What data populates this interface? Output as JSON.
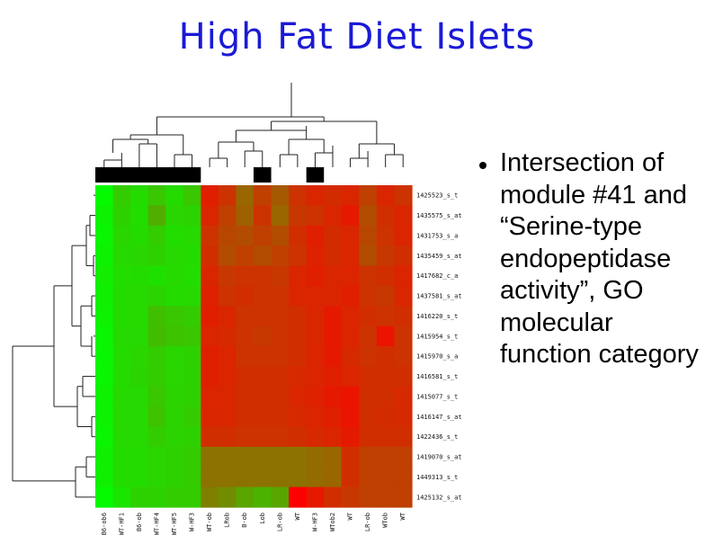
{
  "slide": {
    "title": "High Fat Diet Islets",
    "bullet_text": "Intersection of module #41 and “Serine-type endopeptidase activity”, GO molecular function category"
  },
  "chart_data": {
    "type": "heatmap",
    "row_labels": [
      "1425523_s_t",
      "1435575_s_at",
      "1431753_s_a",
      "1435459_s_at",
      "1417682_c_a",
      "1437581_s_at",
      "1416220_s_t",
      "1415954_s_t",
      "1415970_s_a",
      "1416581_s_t",
      "1415077_s_t",
      "1416147_s_at",
      "1422436_s_t",
      "1419070_s_at",
      "1449313_s_t",
      "1425132_s_at"
    ],
    "column_labels": [
      "B6-ob6",
      "WT-HF1",
      "B6-ob",
      "WT-HF4",
      "WT-HF5",
      "W-HF3",
      "WT-ob",
      "LRob",
      "B-ob",
      "Lob",
      "LR-ob",
      "WT",
      "W-HF3",
      "WTob2",
      "WT",
      "LR-ob",
      "WTob",
      "WT"
    ],
    "palette": {
      "low": "#00ff00",
      "mid": "#7f7f00",
      "high": "#ff0000"
    },
    "group_markers": [
      {
        "columns": [
          0,
          5
        ]
      },
      {
        "columns": [
          9,
          9
        ]
      },
      {
        "columns": [
          12,
          12
        ]
      }
    ],
    "values": [
      [
        0.02,
        0.2,
        0.14,
        0.22,
        0.14,
        0.22,
        0.88,
        0.8,
        0.6,
        0.75,
        0.65,
        0.8,
        0.85,
        0.83,
        0.85,
        0.75,
        0.85,
        0.8
      ],
      [
        0.05,
        0.18,
        0.13,
        0.32,
        0.16,
        0.17,
        0.85,
        0.75,
        0.62,
        0.8,
        0.6,
        0.78,
        0.8,
        0.85,
        0.9,
        0.7,
        0.82,
        0.85
      ],
      [
        0.04,
        0.16,
        0.14,
        0.2,
        0.13,
        0.15,
        0.8,
        0.72,
        0.7,
        0.75,
        0.7,
        0.82,
        0.88,
        0.83,
        0.85,
        0.72,
        0.8,
        0.86
      ],
      [
        0.05,
        0.15,
        0.16,
        0.18,
        0.15,
        0.14,
        0.82,
        0.7,
        0.75,
        0.7,
        0.75,
        0.8,
        0.87,
        0.83,
        0.85,
        0.7,
        0.78,
        0.82
      ],
      [
        0.07,
        0.13,
        0.14,
        0.12,
        0.15,
        0.13,
        0.85,
        0.78,
        0.8,
        0.8,
        0.78,
        0.85,
        0.88,
        0.85,
        0.86,
        0.8,
        0.82,
        0.86
      ],
      [
        0.06,
        0.14,
        0.15,
        0.17,
        0.14,
        0.15,
        0.87,
        0.8,
        0.82,
        0.8,
        0.8,
        0.86,
        0.85,
        0.85,
        0.88,
        0.8,
        0.78,
        0.85
      ],
      [
        0.05,
        0.14,
        0.15,
        0.25,
        0.22,
        0.2,
        0.88,
        0.85,
        0.8,
        0.8,
        0.8,
        0.82,
        0.85,
        0.9,
        0.86,
        0.82,
        0.8,
        0.82
      ],
      [
        0.04,
        0.15,
        0.15,
        0.26,
        0.24,
        0.22,
        0.86,
        0.84,
        0.8,
        0.78,
        0.8,
        0.82,
        0.85,
        0.9,
        0.86,
        0.8,
        0.92,
        0.8
      ],
      [
        0.03,
        0.14,
        0.16,
        0.2,
        0.16,
        0.18,
        0.88,
        0.86,
        0.8,
        0.8,
        0.8,
        0.82,
        0.86,
        0.9,
        0.84,
        0.8,
        0.82,
        0.8
      ],
      [
        0.04,
        0.14,
        0.17,
        0.2,
        0.16,
        0.18,
        0.88,
        0.86,
        0.82,
        0.82,
        0.82,
        0.84,
        0.86,
        0.88,
        0.86,
        0.82,
        0.82,
        0.82
      ],
      [
        0.05,
        0.15,
        0.15,
        0.22,
        0.17,
        0.18,
        0.86,
        0.85,
        0.82,
        0.82,
        0.82,
        0.85,
        0.87,
        0.9,
        0.92,
        0.82,
        0.82,
        0.84
      ],
      [
        0.05,
        0.15,
        0.15,
        0.24,
        0.17,
        0.2,
        0.85,
        0.85,
        0.82,
        0.82,
        0.82,
        0.84,
        0.86,
        0.88,
        0.92,
        0.82,
        0.83,
        0.84
      ],
      [
        0.04,
        0.15,
        0.15,
        0.2,
        0.17,
        0.18,
        0.82,
        0.82,
        0.8,
        0.8,
        0.8,
        0.82,
        0.84,
        0.86,
        0.9,
        0.82,
        0.82,
        0.82
      ],
      [
        0.06,
        0.14,
        0.14,
        0.16,
        0.18,
        0.2,
        0.55,
        0.55,
        0.55,
        0.55,
        0.55,
        0.55,
        0.58,
        0.6,
        0.82,
        0.75,
        0.75,
        0.75
      ],
      [
        0.06,
        0.14,
        0.14,
        0.16,
        0.18,
        0.2,
        0.55,
        0.55,
        0.55,
        0.55,
        0.55,
        0.55,
        0.58,
        0.6,
        0.82,
        0.75,
        0.75,
        0.75
      ],
      [
        0.02,
        0.1,
        0.18,
        0.18,
        0.2,
        0.2,
        0.5,
        0.45,
        0.35,
        0.3,
        0.35,
        1.0,
        0.9,
        0.82,
        0.78,
        0.75,
        0.75,
        0.75
      ]
    ]
  }
}
